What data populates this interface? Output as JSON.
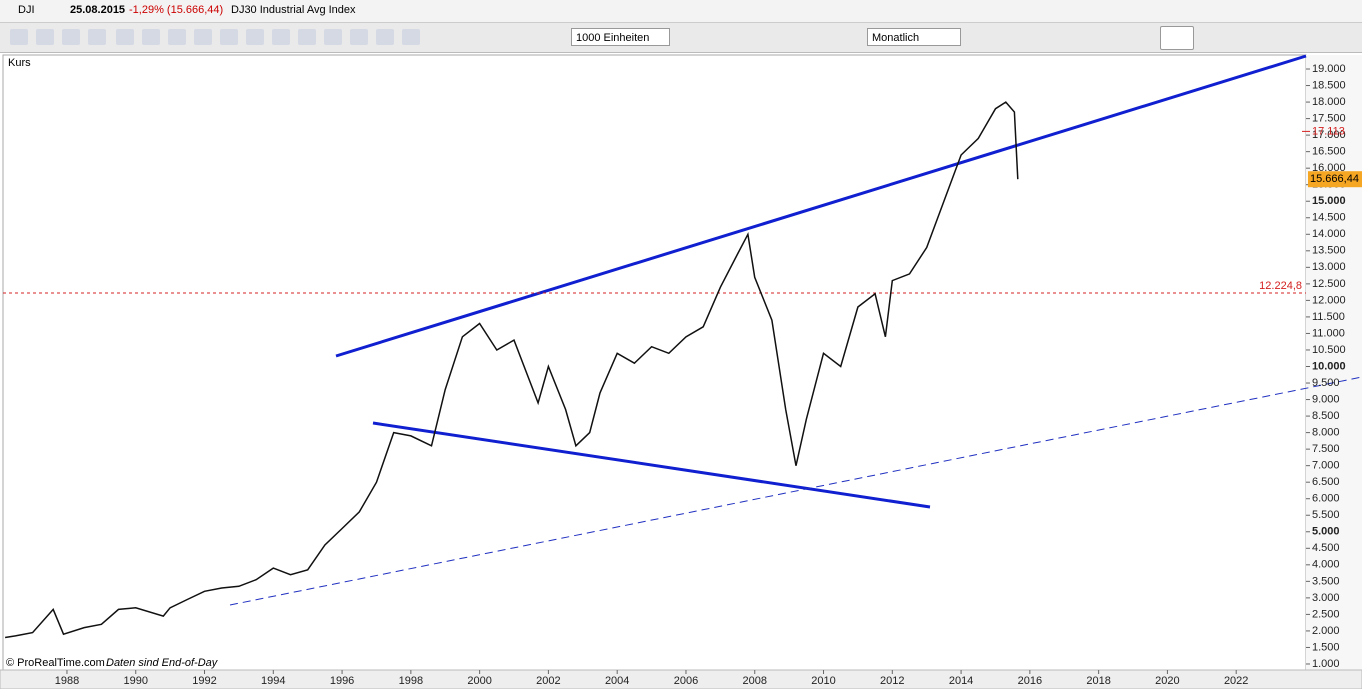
{
  "header": {
    "symbol": "DJI",
    "date": "25.08.2015",
    "change": "-1,29% (15.666,44)",
    "name": "DJ30 Industrial Avg Index"
  },
  "toolbar": {
    "units": "1000 Einheiten",
    "period": "Monatlich"
  },
  "panel": {
    "label": "Kurs"
  },
  "footer": {
    "copyright": "© ProRealTime.com",
    "note": "Daten sind End-of-Day"
  },
  "chart_data": {
    "type": "line",
    "series": [
      {
        "name": "DJI",
        "color": "#111111",
        "x": [
          1986.2,
          1986.5,
          1987.0,
          1987.6,
          1987.9,
          1988.5,
          1989.0,
          1989.5,
          1990.0,
          1990.8,
          1991.0,
          1991.5,
          1992.0,
          1992.5,
          1993.0,
          1993.5,
          1994.0,
          1994.5,
          1995.0,
          1995.5,
          1996.0,
          1996.5,
          1997.0,
          1997.5,
          1998.0,
          1998.6,
          1999.0,
          1999.5,
          2000.0,
          2000.5,
          2001.0,
          2001.7,
          2002.0,
          2002.5,
          2002.8,
          2003.2,
          2003.5,
          2004.0,
          2004.5,
          2005.0,
          2005.5,
          2006.0,
          2006.5,
          2007.0,
          2007.5,
          2007.8,
          2008.0,
          2008.5,
          2008.9,
          2009.2,
          2009.5,
          2010.0,
          2010.5,
          2011.0,
          2011.5,
          2011.8,
          2012.0,
          2012.5,
          2013.0,
          2013.5,
          2014.0,
          2014.5,
          2015.0,
          2015.3,
          2015.55,
          2015.65
        ],
        "values": [
          1800,
          1850,
          1950,
          2650,
          1900,
          2100,
          2200,
          2650,
          2700,
          2450,
          2700,
          2950,
          3200,
          3300,
          3350,
          3550,
          3900,
          3700,
          3850,
          4600,
          5100,
          5600,
          6500,
          8000,
          7900,
          7600,
          9300,
          10900,
          11300,
          10500,
          10800,
          8900,
          10000,
          8700,
          7600,
          8000,
          9200,
          10400,
          10100,
          10600,
          10400,
          10900,
          11200,
          12400,
          13400,
          14000,
          12700,
          11400,
          8700,
          7000,
          8400,
          10400,
          10000,
          11800,
          12200,
          10900,
          12600,
          12800,
          13600,
          15000,
          16400,
          16900,
          17800,
          18000,
          17700,
          15666
        ]
      }
    ],
    "xlim": [
      1986.14,
      2024.03
    ],
    "xticks": [
      1988,
      1990,
      1992,
      1994,
      1996,
      1998,
      2000,
      2002,
      2004,
      2006,
      2008,
      2010,
      2012,
      2014,
      2016,
      2018,
      2020,
      2022
    ],
    "ylim": [
      818,
      19424
    ],
    "yticks": [
      {
        "value": 1000,
        "label": "1.000"
      },
      {
        "value": 1500,
        "label": "1.500"
      },
      {
        "value": 2000,
        "label": "2.000"
      },
      {
        "value": 2500,
        "label": "2.500"
      },
      {
        "value": 3000,
        "label": "3.000"
      },
      {
        "value": 3500,
        "label": "3.500"
      },
      {
        "value": 4000,
        "label": "4.000"
      },
      {
        "value": 4500,
        "label": "4.500"
      },
      {
        "value": 5000,
        "label": "5.000"
      },
      {
        "value": 5500,
        "label": "5.500"
      },
      {
        "value": 6000,
        "label": "6.000"
      },
      {
        "value": 6500,
        "label": "6.500"
      },
      {
        "value": 7000,
        "label": "7.000"
      },
      {
        "value": 7500,
        "label": "7.500"
      },
      {
        "value": 8000,
        "label": "8.000"
      },
      {
        "value": 8500,
        "label": "8.500"
      },
      {
        "value": 9000,
        "label": "9.000"
      },
      {
        "value": 9500,
        "label": "9.500"
      },
      {
        "value": 10000,
        "label": "10.000"
      },
      {
        "value": 10500,
        "label": "10.500"
      },
      {
        "value": 11000,
        "label": "11.000"
      },
      {
        "value": 11500,
        "label": "11.500"
      },
      {
        "value": 12000,
        "label": "12.000"
      },
      {
        "value": 12500,
        "label": "12.500"
      },
      {
        "value": 13000,
        "label": "13.000"
      },
      {
        "value": 13500,
        "label": "13.500"
      },
      {
        "value": 14000,
        "label": "14.000"
      },
      {
        "value": 14500,
        "label": "14.500"
      },
      {
        "value": 15000,
        "label": "15.000"
      },
      {
        "value": 15500,
        "label": "15.500"
      },
      {
        "value": 16000,
        "label": "16.000"
      },
      {
        "value": 16500,
        "label": "16.500"
      },
      {
        "value": 17000,
        "label": "17.000"
      },
      {
        "value": 17500,
        "label": "17.500"
      },
      {
        "value": 18000,
        "label": "18.000"
      },
      {
        "value": 18500,
        "label": "18.500"
      },
      {
        "value": 19000,
        "label": "19.000"
      }
    ],
    "hline": {
      "value": 12224.8,
      "label": "12.224,8",
      "color": "#d42020"
    },
    "marker": {
      "value": 17113,
      "label": "17.113",
      "color": "#d42020"
    },
    "last_price": {
      "value": 15666.44,
      "label": "15.666,44",
      "color": "#f5a623"
    }
  }
}
